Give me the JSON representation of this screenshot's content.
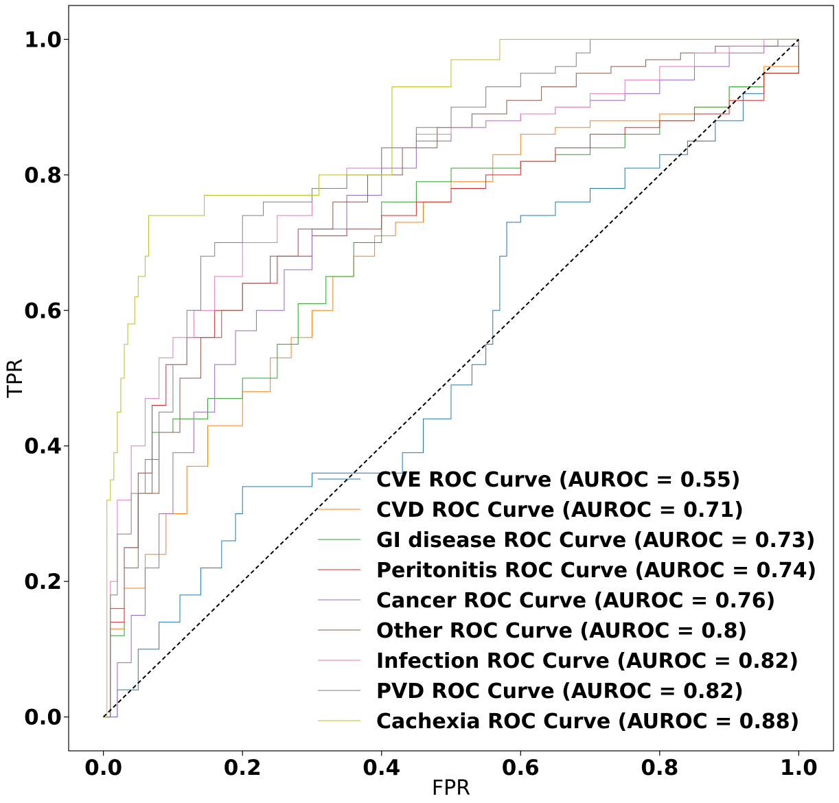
{
  "chart_data": {
    "type": "line",
    "title": "",
    "xlabel": "FPR",
    "ylabel": "TPR",
    "xlim": [
      -0.05,
      1.05
    ],
    "ylim": [
      -0.05,
      1.05
    ],
    "xticks": [
      0.0,
      0.2,
      0.4,
      0.6,
      0.8,
      1.0
    ],
    "yticks": [
      0.0,
      0.2,
      0.4,
      0.6,
      0.8,
      1.0
    ],
    "xtick_labels": [
      "0.0",
      "0.2",
      "0.4",
      "0.6",
      "0.8",
      "1.0"
    ],
    "ytick_labels": [
      "0.0",
      "0.2",
      "0.4",
      "0.6",
      "0.8",
      "1.0"
    ],
    "legend_position": "lower-right",
    "diagonal": {
      "x": [
        0,
        1
      ],
      "y": [
        0,
        1
      ],
      "color": "#000000",
      "style": "dashed"
    },
    "series": [
      {
        "name": "CVE ROC Curve (AUROC = 0.55)",
        "color": "#1f77b4",
        "x": [
          0,
          0.02,
          0.05,
          0.08,
          0.11,
          0.14,
          0.17,
          0.19,
          0.2,
          0.3,
          0.35,
          0.43,
          0.46,
          0.5,
          0.53,
          0.55,
          0.56,
          0.57,
          0.58,
          0.6,
          0.65,
          0.7,
          0.75,
          0.8,
          0.84,
          0.88,
          0.92,
          0.95,
          1.0
        ],
        "y": [
          0,
          0.04,
          0.1,
          0.14,
          0.18,
          0.22,
          0.26,
          0.3,
          0.34,
          0.36,
          0.36,
          0.39,
          0.44,
          0.49,
          0.52,
          0.55,
          0.6,
          0.68,
          0.73,
          0.74,
          0.76,
          0.78,
          0.81,
          0.83,
          0.85,
          0.88,
          0.92,
          0.95,
          1.0
        ]
      },
      {
        "name": "CVD ROC Curve (AUROC = 0.71)",
        "color": "#ff7f0e",
        "x": [
          0,
          0.01,
          0.03,
          0.06,
          0.09,
          0.12,
          0.15,
          0.2,
          0.24,
          0.27,
          0.3,
          0.33,
          0.36,
          0.39,
          0.42,
          0.46,
          0.5,
          0.56,
          0.6,
          0.65,
          0.7,
          0.75,
          0.8,
          0.85,
          0.9,
          0.95,
          1.0
        ],
        "y": [
          0,
          0.13,
          0.19,
          0.24,
          0.3,
          0.37,
          0.43,
          0.48,
          0.53,
          0.56,
          0.6,
          0.65,
          0.68,
          0.71,
          0.73,
          0.76,
          0.79,
          0.83,
          0.86,
          0.87,
          0.88,
          0.88,
          0.89,
          0.9,
          0.93,
          0.96,
          1.0
        ]
      },
      {
        "name": "GI disease ROC Curve (AUROC = 0.73)",
        "color": "#2ca02c",
        "x": [
          0,
          0.01,
          0.03,
          0.05,
          0.07,
          0.1,
          0.15,
          0.2,
          0.25,
          0.28,
          0.32,
          0.36,
          0.4,
          0.45,
          0.5,
          0.55,
          0.6,
          0.65,
          0.7,
          0.75,
          0.8,
          0.85,
          0.9,
          0.95,
          1.0
        ],
        "y": [
          0,
          0.12,
          0.22,
          0.33,
          0.42,
          0.44,
          0.47,
          0.5,
          0.55,
          0.61,
          0.65,
          0.7,
          0.76,
          0.79,
          0.81,
          0.81,
          0.82,
          0.83,
          0.84,
          0.86,
          0.88,
          0.9,
          0.93,
          0.95,
          1.0
        ]
      },
      {
        "name": "Peritonitis ROC Curve (AUROC = 0.74)",
        "color": "#d62728",
        "x": [
          0,
          0.01,
          0.03,
          0.05,
          0.07,
          0.09,
          0.12,
          0.16,
          0.2,
          0.25,
          0.3,
          0.35,
          0.4,
          0.45,
          0.5,
          0.55,
          0.6,
          0.65,
          0.7,
          0.75,
          0.8,
          0.85,
          0.9,
          0.95,
          1.0
        ],
        "y": [
          0,
          0.14,
          0.25,
          0.36,
          0.46,
          0.52,
          0.56,
          0.6,
          0.64,
          0.68,
          0.71,
          0.72,
          0.74,
          0.76,
          0.78,
          0.8,
          0.82,
          0.84,
          0.86,
          0.87,
          0.88,
          0.89,
          0.91,
          0.95,
          1.0
        ]
      },
      {
        "name": "Cancer ROC Curve (AUROC = 0.76)",
        "color": "#9467bd",
        "x": [
          0,
          0.02,
          0.04,
          0.06,
          0.08,
          0.1,
          0.13,
          0.16,
          0.19,
          0.22,
          0.26,
          0.3,
          0.35,
          0.4,
          0.45,
          0.5,
          0.55,
          0.6,
          0.65,
          0.7,
          0.75,
          0.8,
          0.85,
          0.9,
          0.95,
          1.0
        ],
        "y": [
          0,
          0.08,
          0.15,
          0.22,
          0.3,
          0.39,
          0.45,
          0.52,
          0.57,
          0.6,
          0.66,
          0.72,
          0.77,
          0.81,
          0.85,
          0.87,
          0.88,
          0.89,
          0.9,
          0.91,
          0.92,
          0.94,
          0.96,
          0.98,
          0.99,
          1.0
        ]
      },
      {
        "name": "Other ROC Curve (AUROC = 0.8)",
        "color": "#8c564b",
        "x": [
          0,
          0.01,
          0.03,
          0.05,
          0.08,
          0.11,
          0.14,
          0.17,
          0.2,
          0.24,
          0.28,
          0.33,
          0.38,
          0.43,
          0.48,
          0.53,
          0.58,
          0.63,
          0.68,
          0.73,
          0.78,
          0.83,
          0.88,
          0.93,
          0.97,
          1.0
        ],
        "y": [
          0,
          0.16,
          0.25,
          0.33,
          0.42,
          0.5,
          0.56,
          0.6,
          0.64,
          0.68,
          0.72,
          0.76,
          0.8,
          0.84,
          0.87,
          0.89,
          0.91,
          0.93,
          0.95,
          0.96,
          0.97,
          0.98,
          0.99,
          0.99,
          1.0,
          1.0
        ]
      },
      {
        "name": "Infection ROC Curve (AUROC = 0.82)",
        "color": "#e377c2",
        "x": [
          0,
          0.01,
          0.02,
          0.04,
          0.06,
          0.08,
          0.1,
          0.13,
          0.16,
          0.2,
          0.25,
          0.3,
          0.35,
          0.4,
          0.45,
          0.5,
          0.55,
          0.6,
          0.65,
          0.7,
          0.75,
          0.8,
          0.85,
          0.9,
          0.95,
          1.0
        ],
        "y": [
          0,
          0.2,
          0.32,
          0.4,
          0.47,
          0.53,
          0.56,
          0.6,
          0.65,
          0.7,
          0.74,
          0.78,
          0.81,
          0.84,
          0.86,
          0.87,
          0.88,
          0.89,
          0.9,
          0.92,
          0.94,
          0.96,
          0.98,
          0.99,
          1.0,
          1.0
        ]
      },
      {
        "name": "PVD ROC Curve (AUROC = 0.82)",
        "color": "#7f7f7f",
        "x": [
          0,
          0.01,
          0.02,
          0.04,
          0.06,
          0.08,
          0.1,
          0.12,
          0.14,
          0.16,
          0.2,
          0.23,
          0.3,
          0.35,
          0.4,
          0.45,
          0.5,
          0.55,
          0.6,
          0.65,
          0.68,
          0.7,
          0.75,
          0.8,
          0.9,
          1.0
        ],
        "y": [
          0,
          0.18,
          0.27,
          0.33,
          0.38,
          0.45,
          0.52,
          0.6,
          0.68,
          0.7,
          0.74,
          0.76,
          0.78,
          0.8,
          0.84,
          0.87,
          0.9,
          0.93,
          0.95,
          0.96,
          0.98,
          1.0,
          1.0,
          1.0,
          1.0,
          1.0
        ]
      },
      {
        "name": "Cachexia ROC Curve (AUROC = 0.88)",
        "color": "#bcbd22",
        "x": [
          0,
          0.005,
          0.01,
          0.015,
          0.02,
          0.025,
          0.03,
          0.035,
          0.045,
          0.05,
          0.06,
          0.065,
          0.14,
          0.145,
          0.3,
          0.31,
          0.4,
          0.415,
          0.49,
          0.5,
          0.56,
          0.57,
          0.8,
          1.0
        ],
        "y": [
          0,
          0.32,
          0.35,
          0.39,
          0.45,
          0.5,
          0.55,
          0.58,
          0.62,
          0.65,
          0.68,
          0.74,
          0.74,
          0.77,
          0.77,
          0.8,
          0.8,
          0.93,
          0.93,
          0.97,
          0.97,
          1.0,
          1.0,
          1.0
        ]
      }
    ]
  }
}
